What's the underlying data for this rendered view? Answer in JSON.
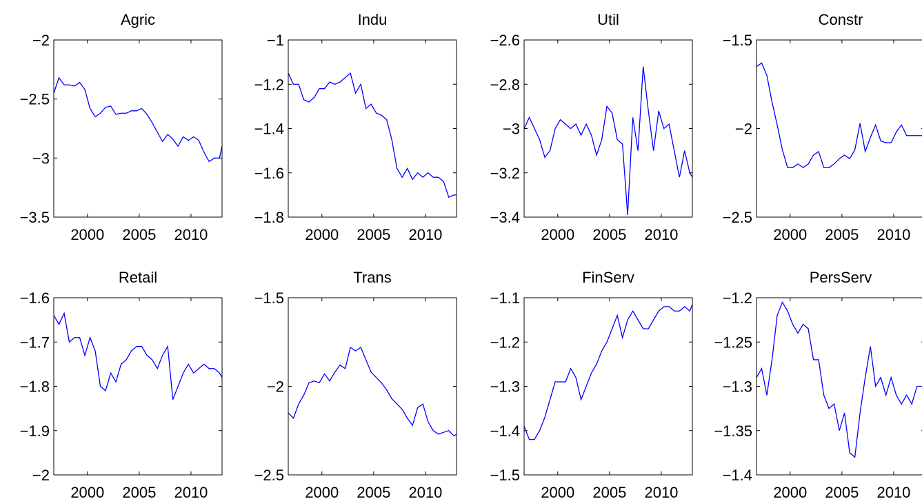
{
  "chart_data": [
    {
      "type": "line",
      "title": "Agric",
      "color": "#0000ff",
      "x": [
        1996.75,
        1997.25,
        1997.75,
        1998.25,
        1998.75,
        1999.25,
        1999.75,
        2000.25,
        2000.75,
        2001.25,
        2001.75,
        2002.25,
        2002.75,
        2003.25,
        2003.75,
        2004.25,
        2004.75,
        2005.25,
        2005.75,
        2006.25,
        2006.75,
        2007.25,
        2007.75,
        2008.25,
        2008.75,
        2009.25,
        2009.75,
        2010.25,
        2010.75,
        2011.25,
        2011.75,
        2012.25,
        2012.75,
        2013
      ],
      "values": [
        -2.45,
        -2.32,
        -2.38,
        -2.38,
        -2.39,
        -2.36,
        -2.42,
        -2.58,
        -2.65,
        -2.62,
        -2.57,
        -2.56,
        -2.63,
        -2.62,
        -2.62,
        -2.6,
        -2.6,
        -2.58,
        -2.63,
        -2.7,
        -2.78,
        -2.86,
        -2.8,
        -2.84,
        -2.9,
        -2.82,
        -2.85,
        -2.82,
        -2.85,
        -2.95,
        -3.03,
        -3.0,
        -3.0,
        -2.9
      ],
      "xlim": [
        1996.75,
        2013
      ],
      "xticks": [
        2000,
        2005,
        2010
      ],
      "ylim": [
        -3.5,
        -2
      ],
      "yticks": [
        {
          "value": -3.5,
          "label": "−3.5"
        },
        {
          "value": -3,
          "label": "−3"
        },
        {
          "value": -2.5,
          "label": "−2.5"
        },
        {
          "value": -2,
          "label": "−2"
        }
      ]
    },
    {
      "type": "line",
      "title": "Indu",
      "color": "#0000ff",
      "x": [
        1996.75,
        1997.25,
        1997.75,
        1998.25,
        1998.75,
        1999.25,
        1999.75,
        2000.25,
        2000.75,
        2001.25,
        2001.75,
        2002.25,
        2002.75,
        2003.25,
        2003.75,
        2004.25,
        2004.75,
        2005.25,
        2005.75,
        2006.25,
        2006.75,
        2007.25,
        2007.75,
        2008.25,
        2008.75,
        2009.25,
        2009.75,
        2010.25,
        2010.75,
        2011.25,
        2011.75,
        2012.25,
        2012.75,
        2013
      ],
      "values": [
        -1.15,
        -1.2,
        -1.2,
        -1.27,
        -1.28,
        -1.26,
        -1.22,
        -1.22,
        -1.19,
        -1.2,
        -1.19,
        -1.17,
        -1.15,
        -1.24,
        -1.2,
        -1.31,
        -1.29,
        -1.33,
        -1.34,
        -1.36,
        -1.45,
        -1.58,
        -1.62,
        -1.58,
        -1.63,
        -1.6,
        -1.62,
        -1.6,
        -1.62,
        -1.62,
        -1.64,
        -1.71,
        -1.7,
        -1.7
      ],
      "xlim": [
        1996.75,
        2013
      ],
      "xticks": [
        2000,
        2005,
        2010
      ],
      "ylim": [
        -1.8,
        -1
      ],
      "yticks": [
        {
          "value": -1.8,
          "label": "−1.8"
        },
        {
          "value": -1.6,
          "label": "−1.6"
        },
        {
          "value": -1.4,
          "label": "−1.4"
        },
        {
          "value": -1.2,
          "label": "−1.2"
        },
        {
          "value": -1,
          "label": "−1"
        }
      ]
    },
    {
      "type": "line",
      "title": "Util",
      "color": "#0000ff",
      "x": [
        1996.75,
        1997.25,
        1997.75,
        1998.25,
        1998.75,
        1999.25,
        1999.75,
        2000.25,
        2000.75,
        2001.25,
        2001.75,
        2002.25,
        2002.75,
        2003.25,
        2003.75,
        2004.25,
        2004.75,
        2005.25,
        2005.75,
        2006.25,
        2006.75,
        2007.25,
        2007.75,
        2008.25,
        2008.75,
        2009.25,
        2009.75,
        2010.25,
        2010.75,
        2011.25,
        2011.75,
        2012.25,
        2012.75,
        2013
      ],
      "values": [
        -3.0,
        -2.95,
        -3.0,
        -3.05,
        -3.13,
        -3.1,
        -3.0,
        -2.96,
        -2.98,
        -3.0,
        -2.98,
        -3.03,
        -2.98,
        -3.03,
        -3.12,
        -3.05,
        -2.9,
        -2.93,
        -3.05,
        -3.07,
        -3.39,
        -2.95,
        -3.1,
        -2.72,
        -2.92,
        -3.1,
        -2.92,
        -3.0,
        -2.98,
        -3.1,
        -3.22,
        -3.1,
        -3.2,
        -3.22
      ],
      "xlim": [
        1996.75,
        2013
      ],
      "xticks": [
        2000,
        2005,
        2010
      ],
      "ylim": [
        -3.4,
        -2.6
      ],
      "yticks": [
        {
          "value": -3.4,
          "label": "−3.4"
        },
        {
          "value": -3.2,
          "label": "−3.2"
        },
        {
          "value": -3,
          "label": "−3"
        },
        {
          "value": -2.8,
          "label": "−2.8"
        },
        {
          "value": -2.6,
          "label": "−2.6"
        }
      ]
    },
    {
      "type": "line",
      "title": "Constr",
      "color": "#0000ff",
      "x": [
        1996.75,
        1997.25,
        1997.75,
        1998.25,
        1998.75,
        1999.25,
        1999.75,
        2000.25,
        2000.75,
        2001.25,
        2001.75,
        2002.25,
        2002.75,
        2003.25,
        2003.75,
        2004.25,
        2004.75,
        2005.25,
        2005.75,
        2006.25,
        2006.75,
        2007.25,
        2007.75,
        2008.25,
        2008.75,
        2009.25,
        2009.75,
        2010.25,
        2010.75,
        2011.25,
        2011.75,
        2012.25,
        2012.75,
        2013
      ],
      "values": [
        -1.65,
        -1.63,
        -1.7,
        -1.85,
        -1.98,
        -2.12,
        -2.22,
        -2.22,
        -2.2,
        -2.22,
        -2.2,
        -2.15,
        -2.13,
        -2.22,
        -2.22,
        -2.2,
        -2.17,
        -2.15,
        -2.17,
        -2.12,
        -1.97,
        -2.13,
        -2.05,
        -1.98,
        -2.07,
        -2.08,
        -2.08,
        -2.02,
        -1.98,
        -2.04,
        -2.04,
        -2.04,
        -2.04,
        -2.04
      ],
      "xlim": [
        1996.75,
        2013
      ],
      "xticks": [
        2000,
        2005,
        2010
      ],
      "ylim": [
        -2.5,
        -1.5
      ],
      "yticks": [
        {
          "value": -2.5,
          "label": "−2.5"
        },
        {
          "value": -2,
          "label": "−2"
        },
        {
          "value": -1.5,
          "label": "−1.5"
        }
      ]
    },
    {
      "type": "line",
      "title": "Retail",
      "color": "#0000ff",
      "x": [
        1996.75,
        1997.25,
        1997.75,
        1998.25,
        1998.75,
        1999.25,
        1999.75,
        2000.25,
        2000.75,
        2001.25,
        2001.75,
        2002.25,
        2002.75,
        2003.25,
        2003.75,
        2004.25,
        2004.75,
        2005.25,
        2005.75,
        2006.25,
        2006.75,
        2007.25,
        2007.75,
        2008.25,
        2008.75,
        2009.25,
        2009.75,
        2010.25,
        2010.75,
        2011.25,
        2011.75,
        2012.25,
        2012.75,
        2013
      ],
      "values": [
        -1.64,
        -1.66,
        -1.635,
        -1.7,
        -1.69,
        -1.69,
        -1.73,
        -1.69,
        -1.72,
        -1.8,
        -1.81,
        -1.77,
        -1.79,
        -1.75,
        -1.74,
        -1.72,
        -1.71,
        -1.71,
        -1.73,
        -1.74,
        -1.76,
        -1.73,
        -1.71,
        -1.83,
        -1.8,
        -1.77,
        -1.75,
        -1.77,
        -1.76,
        -1.75,
        -1.76,
        -1.76,
        -1.77,
        -1.78
      ],
      "xlim": [
        1996.75,
        2013
      ],
      "xticks": [
        2000,
        2005,
        2010
      ],
      "ylim": [
        -2,
        -1.6
      ],
      "yticks": [
        {
          "value": -2,
          "label": "−2"
        },
        {
          "value": -1.9,
          "label": "−1.9"
        },
        {
          "value": -1.8,
          "label": "−1.8"
        },
        {
          "value": -1.7,
          "label": "−1.7"
        },
        {
          "value": -1.6,
          "label": "−1.6"
        }
      ]
    },
    {
      "type": "line",
      "title": "Trans",
      "color": "#0000ff",
      "x": [
        1996.75,
        1997.25,
        1997.75,
        1998.25,
        1998.75,
        1999.25,
        1999.75,
        2000.25,
        2000.75,
        2001.25,
        2001.75,
        2002.25,
        2002.75,
        2003.25,
        2003.75,
        2004.25,
        2004.75,
        2005.25,
        2005.75,
        2006.25,
        2006.75,
        2007.25,
        2007.75,
        2008.25,
        2008.75,
        2009.25,
        2009.75,
        2010.25,
        2010.75,
        2011.25,
        2011.75,
        2012.25,
        2012.75,
        2013
      ],
      "values": [
        -2.15,
        -2.18,
        -2.1,
        -2.05,
        -1.98,
        -1.97,
        -1.98,
        -1.93,
        -1.97,
        -1.92,
        -1.88,
        -1.9,
        -1.78,
        -1.8,
        -1.78,
        -1.85,
        -1.92,
        -1.95,
        -1.98,
        -2.02,
        -2.07,
        -2.1,
        -2.13,
        -2.18,
        -2.22,
        -2.12,
        -2.1,
        -2.2,
        -2.25,
        -2.27,
        -2.26,
        -2.25,
        -2.28,
        -2.27
      ],
      "xlim": [
        1996.75,
        2013
      ],
      "xticks": [
        2000,
        2005,
        2010
      ],
      "ylim": [
        -2.5,
        -1.5
      ],
      "yticks": [
        {
          "value": -2.5,
          "label": "−2.5"
        },
        {
          "value": -2,
          "label": "−2"
        },
        {
          "value": -1.5,
          "label": "−1.5"
        }
      ]
    },
    {
      "type": "line",
      "title": "FinServ",
      "color": "#0000ff",
      "x": [
        1996.75,
        1997.25,
        1997.75,
        1998.25,
        1998.75,
        1999.25,
        1999.75,
        2000.25,
        2000.75,
        2001.25,
        2001.75,
        2002.25,
        2002.75,
        2003.25,
        2003.75,
        2004.25,
        2004.75,
        2005.25,
        2005.75,
        2006.25,
        2006.75,
        2007.25,
        2007.75,
        2008.25,
        2008.75,
        2009.25,
        2009.75,
        2010.25,
        2010.75,
        2011.25,
        2011.75,
        2012.25,
        2012.75,
        2013
      ],
      "values": [
        -1.39,
        -1.42,
        -1.42,
        -1.4,
        -1.37,
        -1.33,
        -1.29,
        -1.29,
        -1.29,
        -1.26,
        -1.28,
        -1.33,
        -1.3,
        -1.27,
        -1.25,
        -1.22,
        -1.2,
        -1.17,
        -1.14,
        -1.19,
        -1.15,
        -1.13,
        -1.15,
        -1.17,
        -1.17,
        -1.15,
        -1.13,
        -1.12,
        -1.12,
        -1.13,
        -1.13,
        -1.12,
        -1.13,
        -1.115
      ],
      "xlim": [
        1996.75,
        2013
      ],
      "xticks": [
        2000,
        2005,
        2010
      ],
      "ylim": [
        -1.5,
        -1.1
      ],
      "yticks": [
        {
          "value": -1.5,
          "label": "−1.5"
        },
        {
          "value": -1.4,
          "label": "−1.4"
        },
        {
          "value": -1.3,
          "label": "−1.3"
        },
        {
          "value": -1.2,
          "label": "−1.2"
        },
        {
          "value": -1.1,
          "label": "−1.1"
        }
      ]
    },
    {
      "type": "line",
      "title": "PersServ",
      "color": "#0000ff",
      "x": [
        1996.75,
        1997.25,
        1997.75,
        1998.25,
        1998.75,
        1999.25,
        1999.75,
        2000.25,
        2000.75,
        2001.25,
        2001.75,
        2002.25,
        2002.75,
        2003.25,
        2003.75,
        2004.25,
        2004.75,
        2005.25,
        2005.75,
        2006.25,
        2006.75,
        2007.25,
        2007.75,
        2008.25,
        2008.75,
        2009.25,
        2009.75,
        2010.25,
        2010.75,
        2011.25,
        2011.75,
        2012.25,
        2012.75,
        2013
      ],
      "values": [
        -1.29,
        -1.28,
        -1.31,
        -1.27,
        -1.22,
        -1.205,
        -1.215,
        -1.23,
        -1.24,
        -1.23,
        -1.235,
        -1.27,
        -1.27,
        -1.31,
        -1.325,
        -1.32,
        -1.35,
        -1.33,
        -1.375,
        -1.38,
        -1.33,
        -1.29,
        -1.255,
        -1.3,
        -1.29,
        -1.31,
        -1.29,
        -1.31,
        -1.32,
        -1.31,
        -1.32,
        -1.3,
        -1.3,
        -1.3
      ],
      "xlim": [
        1996.75,
        2013
      ],
      "xticks": [
        2000,
        2005,
        2010
      ],
      "ylim": [
        -1.4,
        -1.2
      ],
      "yticks": [
        {
          "value": -1.4,
          "label": "−1.4"
        },
        {
          "value": -1.35,
          "label": "−1.35"
        },
        {
          "value": -1.3,
          "label": "−1.3"
        },
        {
          "value": -1.25,
          "label": "−1.25"
        },
        {
          "value": -1.2,
          "label": "−1.2"
        }
      ]
    }
  ]
}
